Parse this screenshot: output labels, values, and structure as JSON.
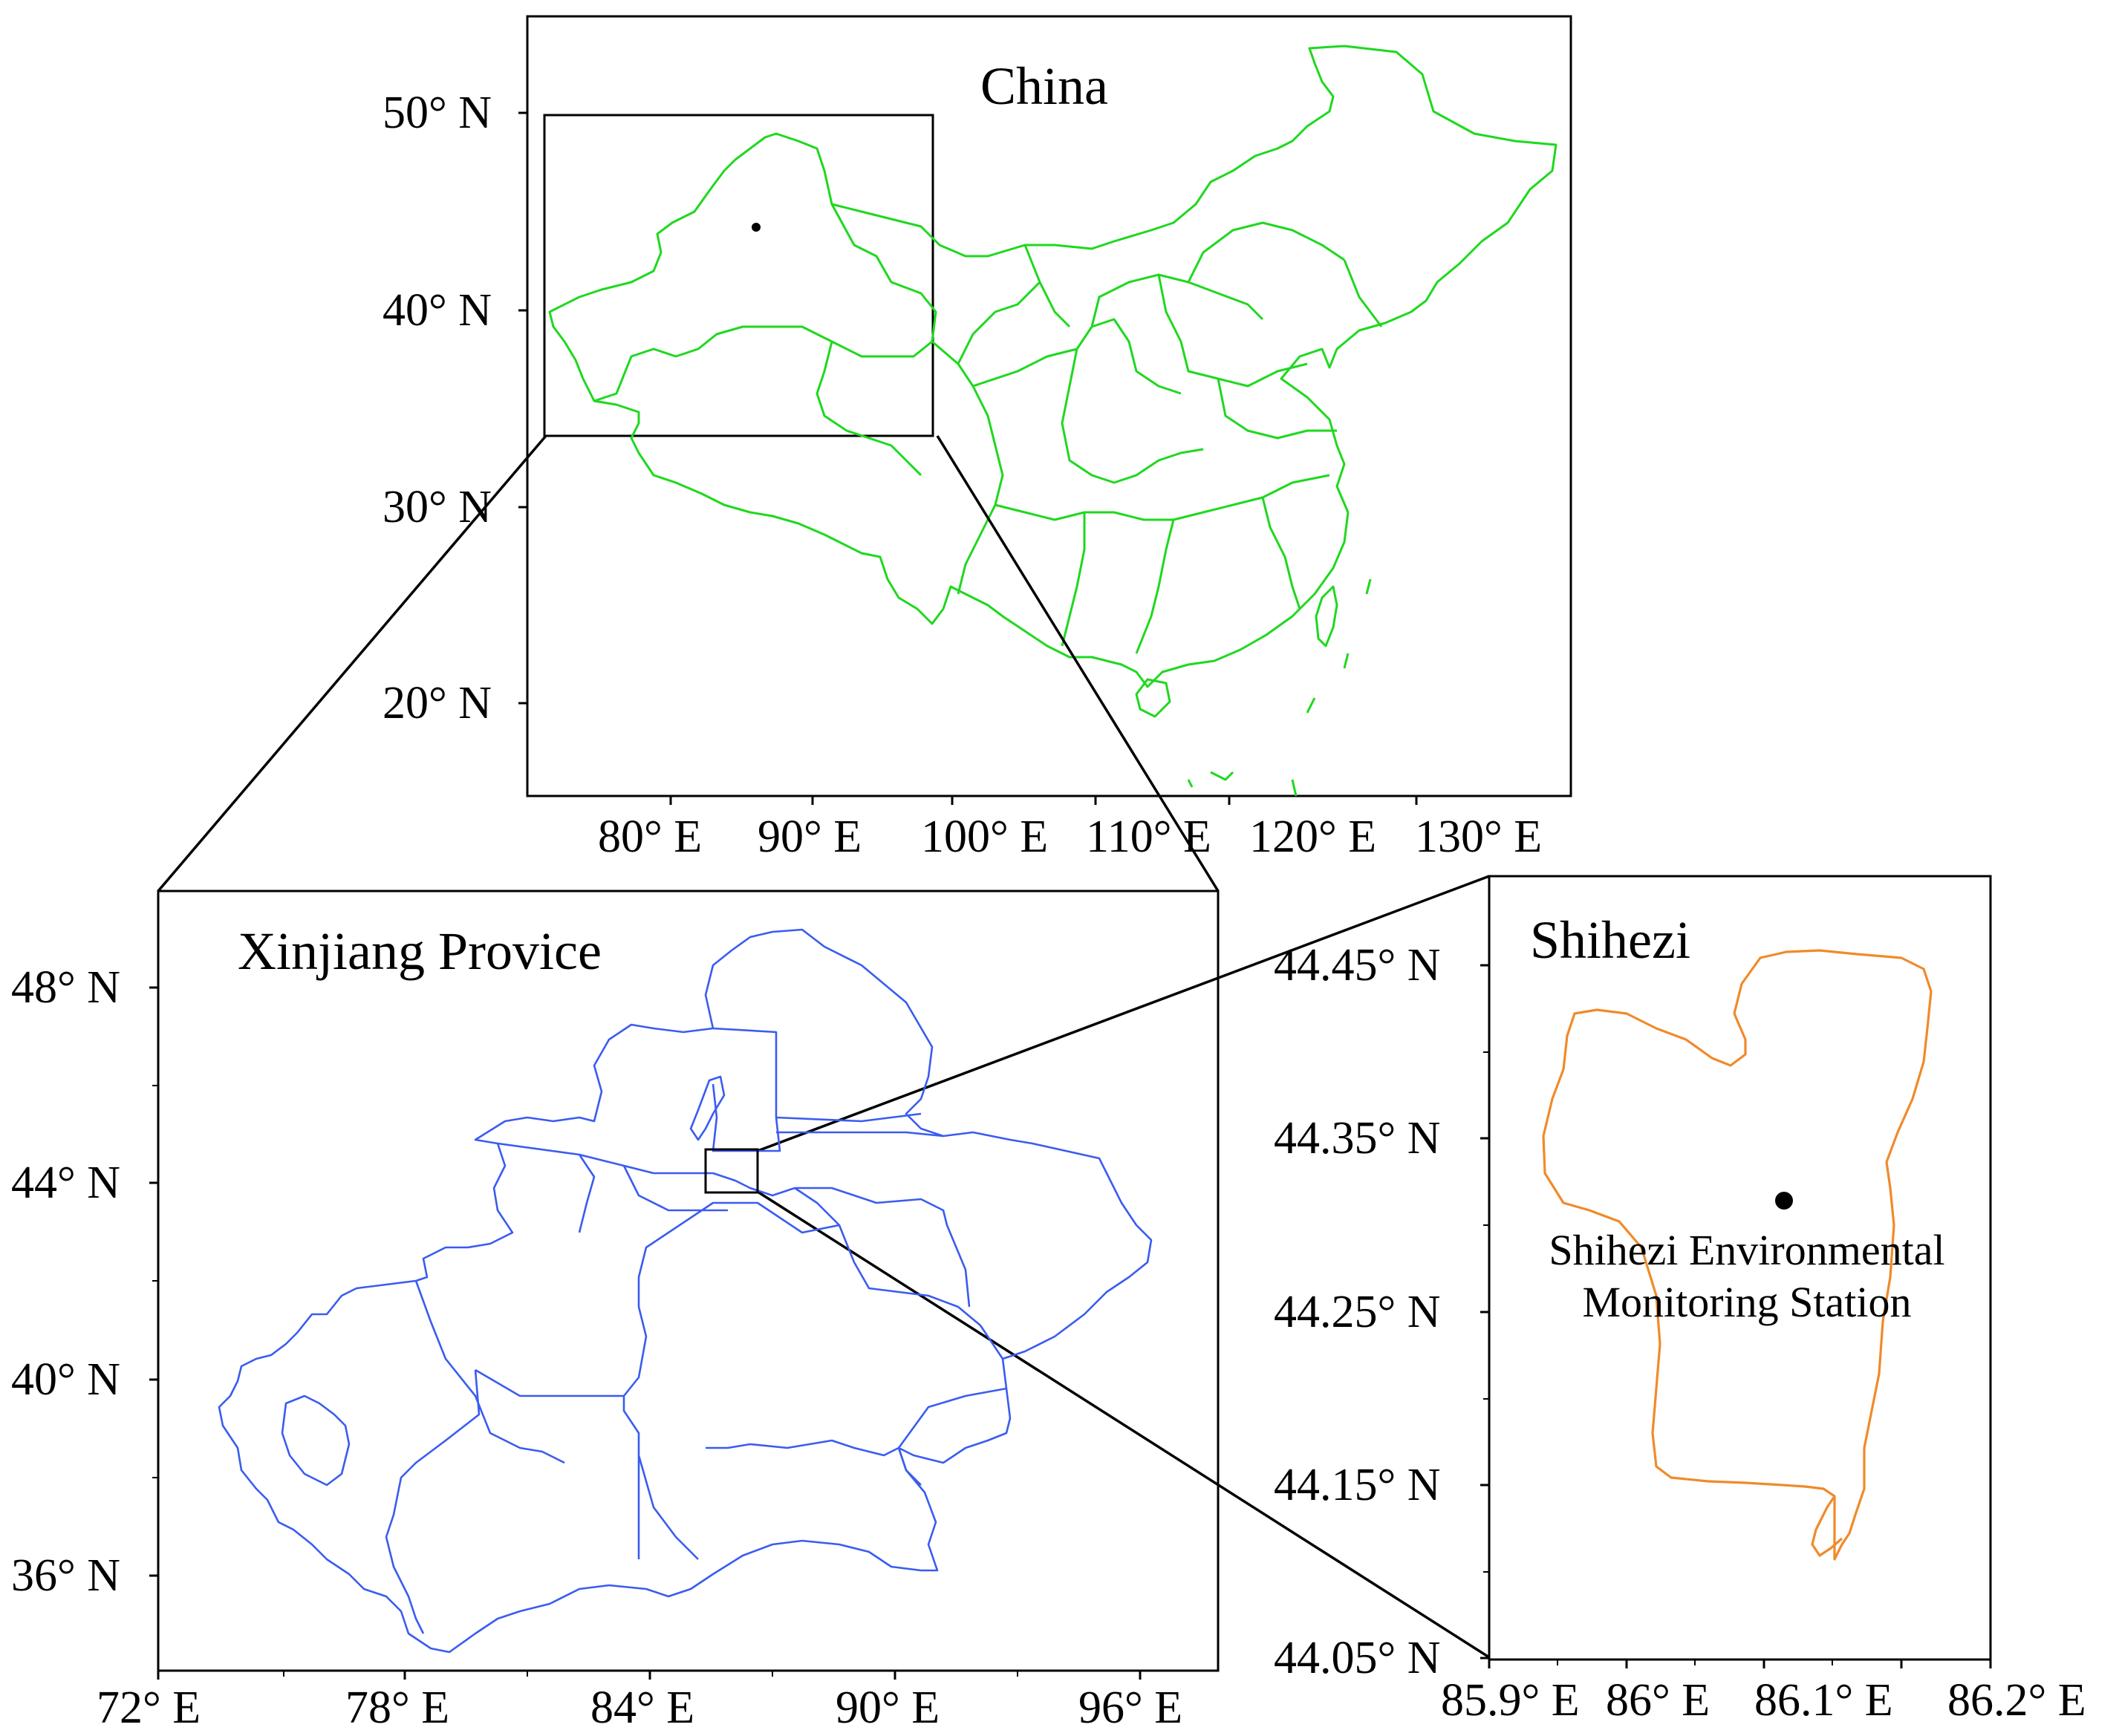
{
  "china_map": {
    "title": "China",
    "lat_ticks": [
      "50° N",
      "40° N",
      "30° N",
      "20° N"
    ],
    "lon_ticks": [
      "80° E",
      "90° E",
      "100° E",
      "110° E",
      "120° E",
      "130° E"
    ],
    "border_color": "#1fd81f"
  },
  "xinjiang_map": {
    "title": "Xinjiang Provice",
    "lat_ticks": [
      "48° N",
      "44° N",
      "40° N",
      "36° N"
    ],
    "lon_ticks": [
      "72° E",
      "78° E",
      "84° E",
      "90° E",
      "96° E"
    ],
    "border_color": "#3a5cf0"
  },
  "shihezi_map": {
    "title": "Shihezi",
    "lat_ticks": [
      "44.45° N",
      "44.35° N",
      "44.25° N",
      "44.15° N",
      "44.05° N"
    ],
    "lon_ticks": [
      "85.9° E",
      "86° E",
      "86.1° E",
      "86.2° E"
    ],
    "border_color": "#f08a2a",
    "station": {
      "label_line1": "Shihezi Environmental",
      "label_line2": "Monitoring Station"
    }
  }
}
